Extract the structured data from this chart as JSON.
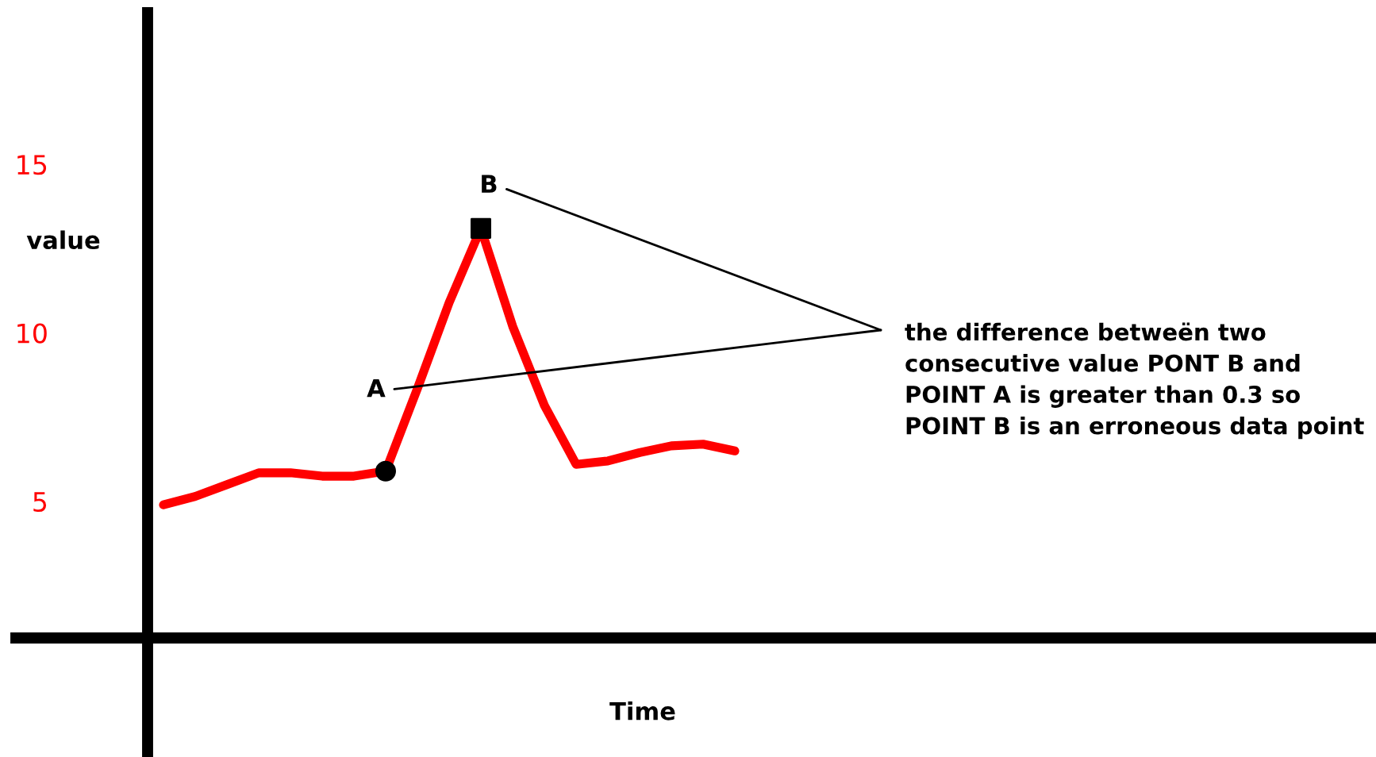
{
  "chart_data": {
    "type": "line",
    "xlabel": "Time",
    "ylabel": "value",
    "categories": [
      null,
      null,
      null,
      null,
      null,
      null,
      null,
      null,
      null,
      null,
      null,
      null,
      null,
      null,
      null,
      null,
      null,
      null,
      null
    ],
    "series": [
      {
        "color": "#ff0000",
        "values": [
          4.9,
          5.15,
          5.5,
          5.85,
          5.85,
          5.75,
          5.75,
          5.9,
          8.35,
          10.9,
          13.1,
          10.2,
          7.85,
          6.1,
          6.2,
          6.45,
          6.65,
          6.7,
          6.5
        ]
      },
      {
        "type": "scatter",
        "color": "#000000",
        "marker": "circle",
        "values": [
          null,
          null,
          null,
          null,
          null,
          null,
          null,
          5.9,
          null,
          null,
          null,
          null,
          null,
          null,
          null,
          null,
          null,
          null,
          null
        ]
      },
      {
        "type": "scatter",
        "color": "#000000",
        "marker": "square",
        "values": [
          null,
          null,
          null,
          null,
          null,
          null,
          null,
          null,
          null,
          null,
          13.1,
          null,
          null,
          null,
          null,
          null,
          null,
          null,
          null
        ]
      }
    ],
    "ylim": [
      0.95,
      19.5
    ],
    "yticks": [
      5,
      10,
      15
    ],
    "tick_labels": "y",
    "grid": false,
    "legend": false,
    "annotations": [
      "A",
      "B",
      "the difference betweën two consecutive value PONT B and POINT A is greater than 0.3 so POINT B is an erroneous data point"
    ]
  }
}
